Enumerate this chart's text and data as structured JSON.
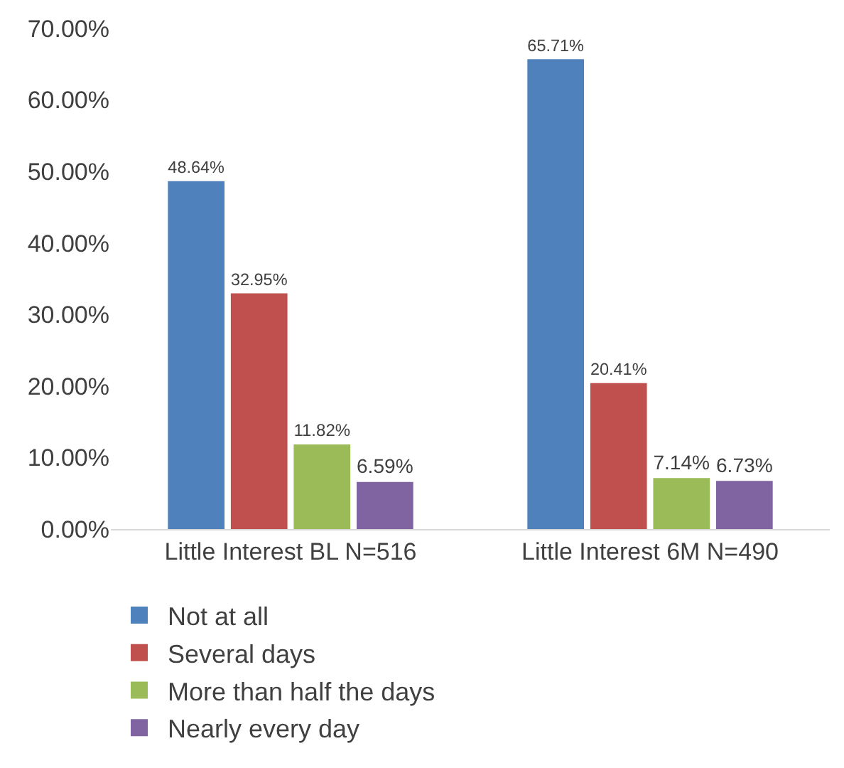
{
  "chart_data": {
    "type": "bar",
    "categories": [
      "Little Interest BL N=516",
      "Little Interest 6M N=490"
    ],
    "series": [
      {
        "name": "Not at all",
        "color": "#4f81bd",
        "values": [
          48.64,
          65.71
        ],
        "value_labels": [
          "48.64%",
          "65.71%"
        ]
      },
      {
        "name": "Several days",
        "color": "#c0504d",
        "values": [
          32.95,
          20.41
        ],
        "value_labels": [
          "32.95%",
          "20.41%"
        ]
      },
      {
        "name": "More than half the days",
        "color": "#9bbb59",
        "values": [
          11.82,
          7.14
        ],
        "value_labels": [
          "11.82%",
          "7.14%"
        ]
      },
      {
        "name": "Nearly every day",
        "color": "#8064a2",
        "values": [
          6.59,
          6.73
        ],
        "value_labels": [
          "6.59%",
          "6.73%"
        ]
      }
    ],
    "ylim": [
      0,
      70
    ],
    "yticks": [
      {
        "value": 0,
        "label": "0.00%"
      },
      {
        "value": 10,
        "label": "10.00%"
      },
      {
        "value": 20,
        "label": "20.00%"
      },
      {
        "value": 30,
        "label": "30.00%"
      },
      {
        "value": 40,
        "label": "40.00%"
      },
      {
        "value": 50,
        "label": "50.00%"
      },
      {
        "value": 60,
        "label": "60.00%"
      },
      {
        "value": 70,
        "label": "70.00%"
      }
    ],
    "grid": false,
    "legend": "bottom"
  }
}
